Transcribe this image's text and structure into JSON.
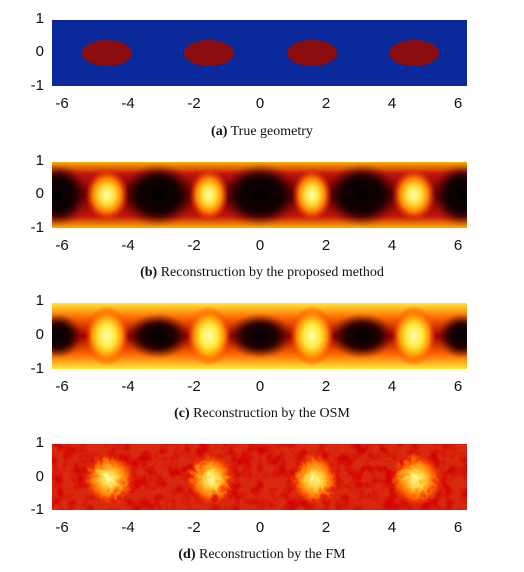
{
  "panels": [
    {
      "kind": "true_geometry",
      "caption_label": "(a)",
      "caption_text": "True geometry",
      "y_ticks": [
        "1",
        "0",
        "-1"
      ],
      "x_ticks": [
        "-6",
        "-4",
        "-2",
        "0",
        "2",
        "4",
        "6"
      ],
      "colors": {
        "background": "#0a2a9c",
        "inclusion": "#8b0d0d"
      }
    },
    {
      "kind": "reconstruction_smooth",
      "caption_label": "(b)",
      "caption_text": "Reconstruction by the proposed method",
      "y_ticks": [
        "1",
        "0",
        "-1"
      ],
      "x_ticks": [
        "-6",
        "-4",
        "-2",
        "0",
        "2",
        "4",
        "6"
      ],
      "colors": {
        "low": "#000000",
        "mid": "#c0150c",
        "high": "#ffff9a"
      }
    },
    {
      "kind": "reconstruction_osm",
      "caption_label": "(c)",
      "caption_text": "Reconstruction by the OSM",
      "y_ticks": [
        "1",
        "0",
        "-1"
      ],
      "x_ticks": [
        "-6",
        "-4",
        "-2",
        "0",
        "2",
        "4",
        "6"
      ],
      "colors": {
        "low": "#000000",
        "mid": "#d8220e",
        "high": "#ffff9a"
      }
    },
    {
      "kind": "reconstruction_fm",
      "caption_label": "(d)",
      "caption_text": "Reconstruction by the FM",
      "y_ticks": [
        "1",
        "0",
        "-1"
      ],
      "x_ticks": [
        "-6",
        "-4",
        "-2",
        "0",
        "2",
        "4",
        "6"
      ],
      "colors": {
        "low": "#5a0000",
        "mid": "#d8280e",
        "high": "#ffff9a"
      }
    }
  ]
}
